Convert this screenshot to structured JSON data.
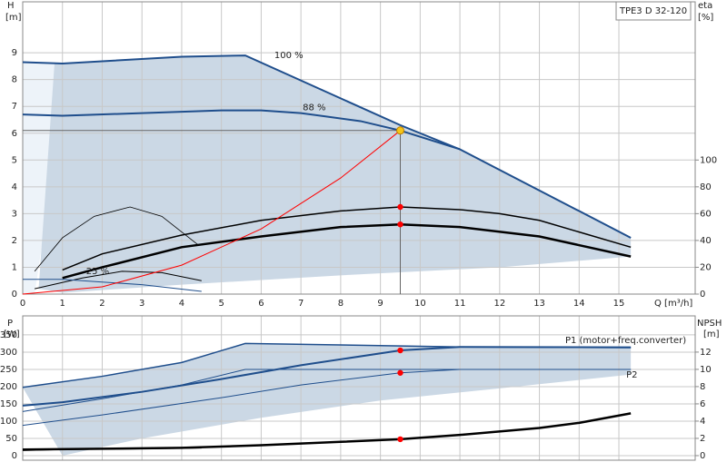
{
  "chart_data": [
    {
      "type": "line",
      "title": "TPE3 D 32-120",
      "x_label": "Q [m³/h]",
      "y_label": "H",
      "y_unit": "[m]",
      "y2_label": "eta",
      "y2_unit": "[%]",
      "xlim": [
        0,
        16.92
      ],
      "xticks": [
        0,
        1,
        2,
        3,
        4,
        5,
        6,
        7,
        8,
        9,
        10,
        11,
        12,
        13,
        14,
        15
      ],
      "show_xtick_labels": true,
      "ylim": [
        0,
        10.9
      ],
      "yticks": [
        0,
        1,
        2,
        3,
        4,
        5,
        6,
        7,
        8,
        9
      ],
      "y2lim": [
        0,
        218
      ],
      "y2ticks": [
        0,
        20,
        40,
        60,
        80,
        100
      ],
      "grid": true,
      "areas": [
        {
          "color": "#edf3f9",
          "x": [
            0,
            0,
            1,
            0.9,
            0.6,
            0.4,
            0.3
          ],
          "values": [
            0,
            8.65,
            8.6,
            6,
            3,
            1,
            0
          ]
        },
        {
          "color": "#cbd8e5",
          "x": [
            0.4,
            0.8,
            1,
            4,
            5.6,
            9.5,
            11,
            15.3,
            15.3,
            12,
            8,
            4,
            1
          ],
          "values": [
            0.2,
            8.6,
            8.6,
            8.85,
            8.9,
            6.3,
            5.4,
            2.1,
            1.4,
            1.0,
            0.7,
            0.35,
            0.05
          ]
        }
      ],
      "series": [
        {
          "name": "100 %",
          "color": "#1f4e8c",
          "width": 2,
          "x": [
            0,
            1,
            4,
            5.6,
            9.5,
            11,
            15.3
          ],
          "values": [
            8.65,
            8.6,
            8.85,
            8.9,
            6.3,
            5.4,
            2.1
          ]
        },
        {
          "name": "88 %",
          "color": "#1f4e8c",
          "width": 2,
          "x": [
            0,
            1,
            3,
            5,
            6,
            7,
            8.5,
            9.5,
            11
          ],
          "values": [
            6.7,
            6.65,
            6.75,
            6.85,
            6.85,
            6.75,
            6.45,
            6.1,
            5.4
          ]
        },
        {
          "color": "#000000",
          "width": 1.5,
          "axis": "y2",
          "x": [
            1,
            2,
            4,
            6,
            8,
            9.5,
            11,
            12,
            13,
            15.3
          ],
          "values": [
            18,
            30,
            44,
            55,
            62,
            65,
            63,
            60,
            55,
            35
          ]
        },
        {
          "color": "#000000",
          "width": 2.5,
          "axis": "y2",
          "x": [
            1,
            2,
            4,
            6,
            8,
            9.5,
            11,
            13,
            15.3
          ],
          "values": [
            12,
            20,
            35,
            43,
            50,
            52,
            50,
            43,
            28
          ]
        },
        {
          "color": "#000000",
          "width": 0.8,
          "axis": "y2",
          "x": [
            0.3,
            1,
            1.8,
            2.7,
            3.5,
            4.4
          ],
          "values": [
            17,
            42,
            58,
            65,
            58,
            37
          ]
        },
        {
          "color": "#000000",
          "width": 1,
          "x": [
            0.3,
            1.5,
            2.5,
            3.5,
            4.5
          ],
          "values": [
            0.2,
            0.6,
            0.85,
            0.8,
            0.5
          ]
        },
        {
          "name": "25 %",
          "color": "#1f4e8c",
          "width": 1,
          "x": [
            0,
            1,
            2,
            3,
            4.5
          ],
          "values": [
            0.55,
            0.55,
            0.45,
            0.35,
            0.1
          ]
        },
        {
          "color": "#ff0000",
          "width": 1,
          "x": [
            0,
            2,
            4,
            6,
            8,
            9.5
          ],
          "values": [
            0,
            0.27,
            1.08,
            2.43,
            4.33,
            6.1
          ]
        }
      ],
      "markers": [
        {
          "x": 9.5,
          "y": 6.1,
          "color": "#f5c518",
          "reference_lines": true
        },
        {
          "x": 9.5,
          "y": 65,
          "axis": "y2",
          "color": "#ff0000"
        },
        {
          "x": 9.5,
          "y": 52,
          "axis": "y2",
          "color": "#ff0000"
        }
      ]
    },
    {
      "type": "line",
      "y_label": "P",
      "y_unit": "[W]",
      "y2_label": "NPSH",
      "y2_unit": "[m]",
      "xlim": [
        0,
        16.92
      ],
      "xticks": [
        0,
        1,
        2,
        3,
        4,
        5,
        6,
        7,
        8,
        9,
        10,
        11,
        12,
        13,
        14,
        15
      ],
      "show_xtick_labels": false,
      "ylim": [
        -13,
        405
      ],
      "yticks": [
        0,
        50,
        100,
        150,
        200,
        250,
        300,
        350
      ],
      "y2lim": [
        -0.53,
        16.2
      ],
      "y2ticks": [
        0,
        2,
        4,
        6,
        8,
        10,
        12
      ],
      "grid": true,
      "areas": [
        {
          "color": "#cbd8e5",
          "x": [
            0,
            2,
            4,
            5.6,
            9.5,
            15.3,
            15.3,
            12,
            9,
            6,
            3,
            1
          ],
          "values": [
            198,
            230,
            270,
            325,
            318,
            315,
            235,
            195,
            160,
            110,
            50,
            0
          ]
        }
      ],
      "series": [
        {
          "name": "P1 (motor+freq.converter)",
          "color": "#1f4e8c",
          "width": 1.5,
          "x": [
            0,
            2,
            4,
            5.6,
            9.5,
            11,
            15.3
          ],
          "values": [
            198,
            230,
            270,
            325,
            318,
            315,
            313
          ]
        },
        {
          "color": "#1f4e8c",
          "width": 2,
          "x": [
            0,
            1,
            3,
            5,
            7,
            9.5,
            11,
            15.3
          ],
          "values": [
            145,
            155,
            185,
            222,
            262,
            305,
            315,
            314
          ]
        },
        {
          "name": "P2",
          "color": "#1f4e8c",
          "width": 1,
          "x": [
            0,
            2,
            4,
            5.6,
            9,
            11,
            15.3
          ],
          "values": [
            128,
            165,
            205,
            250,
            250,
            250,
            250
          ]
        },
        {
          "color": "#1f4e8c",
          "width": 1,
          "x": [
            0,
            2,
            5,
            7,
            9.5,
            11,
            15.3
          ],
          "values": [
            88,
            118,
            168,
            205,
            240,
            250,
            250
          ]
        },
        {
          "color": "#000000",
          "width": 2.5,
          "axis": "y2",
          "x": [
            0,
            2,
            4,
            6,
            8,
            9.5,
            11,
            13,
            14,
            15.3
          ],
          "values": [
            0.7,
            0.8,
            0.9,
            1.2,
            1.6,
            1.9,
            2.4,
            3.2,
            3.8,
            4.9
          ]
        },
        {
          "color": "#000000",
          "width": 1,
          "x": [
            0,
            1,
            3,
            4.5
          ],
          "values": [
            15,
            18,
            20,
            22
          ]
        }
      ],
      "markers": [
        {
          "x": 9.5,
          "y": 305,
          "color": "#ff0000"
        },
        {
          "x": 9.5,
          "y": 240,
          "color": "#ff0000"
        },
        {
          "x": 9.5,
          "y": 1.9,
          "axis": "y2",
          "color": "#ff0000"
        }
      ]
    }
  ]
}
